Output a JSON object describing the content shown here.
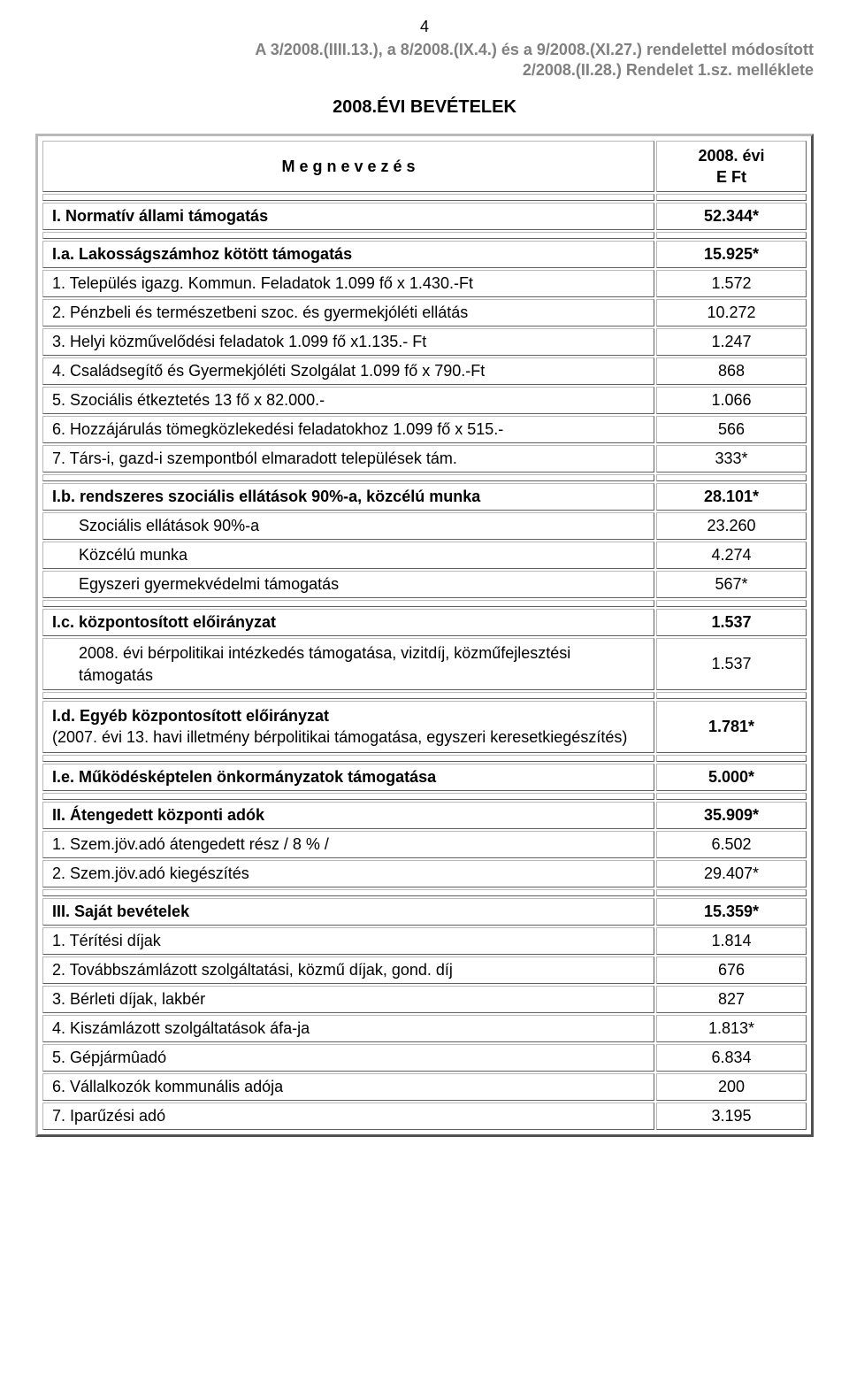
{
  "page_number": "4",
  "doc_ref_line1": "A 3/2008.(IIII.13.), a 8/2008.(IX.4.) és a 9/2008.(XI.27.) rendelettel módosított",
  "doc_ref_line2": "2/2008.(II.28.) Rendelet 1.sz. melléklete",
  "doc_title": "2008.ÉVI BEVÉTELEK",
  "header": {
    "label": "M e g n e v e z é s",
    "value": "2008. évi\nE Ft"
  },
  "s1": {
    "label": "I. Normatív állami támogatás",
    "value": "52.344*"
  },
  "ia": {
    "label": "I.a. Lakosságszámhoz kötött támogatás",
    "value": "15.925*",
    "r1": {
      "label": "1. Település igazg. Kommun. Feladatok 1.099 fő x 1.430.-Ft",
      "value": "1.572"
    },
    "r2": {
      "label": "2. Pénzbeli és természetbeni szoc. és gyermekjóléti ellátás",
      "value": "10.272"
    },
    "r3": {
      "label": "3. Helyi közművelődési feladatok 1.099 fő x1.135.- Ft",
      "value": "1.247"
    },
    "r4": {
      "label": "4. Családsegítő és Gyermekjóléti Szolgálat 1.099 fő x 790.-Ft",
      "value": "868"
    },
    "r5": {
      "label": "5. Szociális étkeztetés 13 fő x 82.000.-",
      "value": "1.066"
    },
    "r6": {
      "label": "6. Hozzájárulás tömegközlekedési feladatokhoz 1.099 fő x 515.-",
      "value": "566"
    },
    "r7": {
      "label": "7. Társ-i, gazd-i szempontból elmaradott települések tám.",
      "value": "333*"
    }
  },
  "ib": {
    "label": "I.b. rendszeres szociális ellátások 90%-a, közcélú munka",
    "value": "28.101*",
    "r1": {
      "label": "Szociális ellátások 90%-a",
      "value": "23.260"
    },
    "r2": {
      "label": "Közcélú munka",
      "value": "4.274"
    },
    "r3": {
      "label": "Egyszeri gyermekvédelmi támogatás",
      "value": "567*"
    }
  },
  "ic": {
    "label": "I.c. központosított előirányzat",
    "value": "1.537",
    "r1": {
      "label": "2008. évi bérpolitikai intézkedés támogatása, vizitdíj, közműfejlesztési támogatás",
      "value": "1.537"
    }
  },
  "id": {
    "label": "I.d. Egyéb központosított előirányzat\n(2007. évi 13. havi illetmény bérpolitikai támogatása, egyszeri keresetkiegészítés)",
    "value": "1.781*"
  },
  "ie": {
    "label": "I.e. Működésképtelen önkormányzatok támogatása",
    "value": "5.000*"
  },
  "s2": {
    "label": "II. Átengedett központi adók",
    "value": "35.909*",
    "r1": {
      "label": "1. Szem.jöv.adó átengedett rész / 8 % /",
      "value": "6.502"
    },
    "r2": {
      "label": "2. Szem.jöv.adó kiegészítés",
      "value": "29.407*"
    }
  },
  "s3": {
    "label": "III. Saját bevételek",
    "value": "15.359*",
    "r1": {
      "label": "1. Térítési díjak",
      "value": "1.814"
    },
    "r2": {
      "label": "2. Továbbszámlázott szolgáltatási, közmű díjak, gond. díj",
      "value": "676"
    },
    "r3": {
      "label": "3. Bérleti díjak, lakbér",
      "value": "827"
    },
    "r4": {
      "label": "4. Kiszámlázott szolgáltatások áfa-ja",
      "value": "1.813*"
    },
    "r5": {
      "label": "5. Gépjármûadó",
      "value": "6.834"
    },
    "r6": {
      "label": "6. Vállalkozók kommunális adója",
      "value": "200"
    },
    "r7": {
      "label": "7. Iparűzési adó",
      "value": "3.195"
    }
  }
}
